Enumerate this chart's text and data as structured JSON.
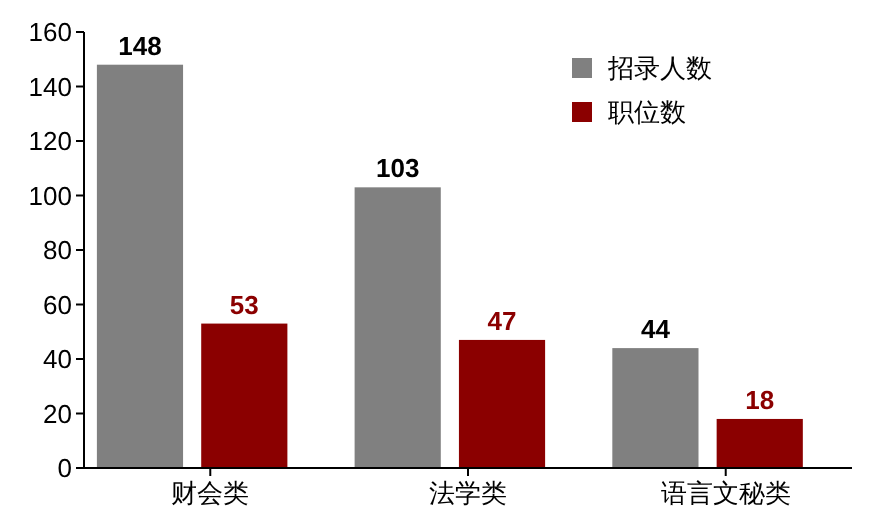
{
  "chart_data": {
    "type": "bar",
    "categories": [
      "财会类",
      "法学类",
      "语言文秘类"
    ],
    "series": [
      {
        "name": "招录人数",
        "color": "#808080",
        "values": [
          148,
          103,
          44
        ]
      },
      {
        "name": "职位数",
        "color": "#8b0000",
        "values": [
          53,
          47,
          18
        ]
      }
    ],
    "ylim": [
      0,
      160
    ],
    "yticks": [
      0,
      20,
      40,
      60,
      80,
      100,
      120,
      140,
      160
    ],
    "data_labels": true,
    "legend": "top right",
    "grid": false
  }
}
